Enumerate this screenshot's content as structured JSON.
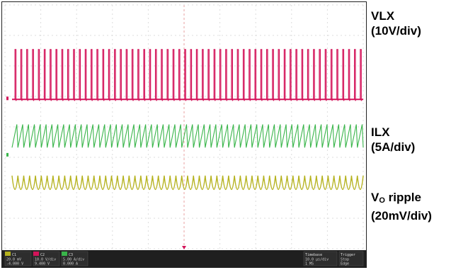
{
  "chart_data": {
    "type": "line",
    "title": "",
    "grid": true,
    "timebase_divisions": 10,
    "vertical_divisions": 8,
    "series": [
      {
        "name": "VLX",
        "scale": "(10V/div)",
        "color": "#d4145a",
        "waveform": "switching pulses",
        "pulse_count": 60,
        "peak_divisions": 2.1
      },
      {
        "name": "ILX",
        "scale": "(5A/div)",
        "color": "#39b54a",
        "waveform": "triangle ripple",
        "cycles": 60,
        "amplitude_divisions": 0.38
      },
      {
        "name": "VO ripple",
        "scale": "(20mV/div)",
        "color": "#b5b21e",
        "waveform": "scalloped ripple",
        "cycles": 60,
        "amplitude_divisions": 0.35
      }
    ]
  },
  "labels": {
    "vlx": {
      "name": "VLX",
      "scale": "(10V/div)"
    },
    "ilx": {
      "name": "ILX",
      "scale": "(5A/div)"
    },
    "vo": {
      "name_main": "V",
      "name_sub": "O",
      "name_rest": " ripple",
      "scale": "(20mV/div)"
    }
  },
  "status_bar": {
    "ch_blocks": [
      {
        "tag": "C1",
        "l1": "20.0 mV",
        "l2": "-4.000 V",
        "color": "#b5b21e"
      },
      {
        "tag": "C2",
        "l1": "10.0 V/div",
        "l2": "9.400 V",
        "color": "#d4145a"
      },
      {
        "tag": "C3",
        "l1": "5.00 A/div",
        "l2": "0.000 A",
        "color": "#39b54a"
      }
    ],
    "timebase": {
      "head": "Timebase",
      "l1": "10.0 µs/div",
      "l2": "1 MS"
    },
    "trigger": {
      "head": "Trigger",
      "l1": "Stop",
      "l2": "Edge"
    }
  },
  "colors": {
    "grid": "#dddddd",
    "grid_center": "#e8a0a0",
    "trigger_marker": "#d4145a"
  }
}
